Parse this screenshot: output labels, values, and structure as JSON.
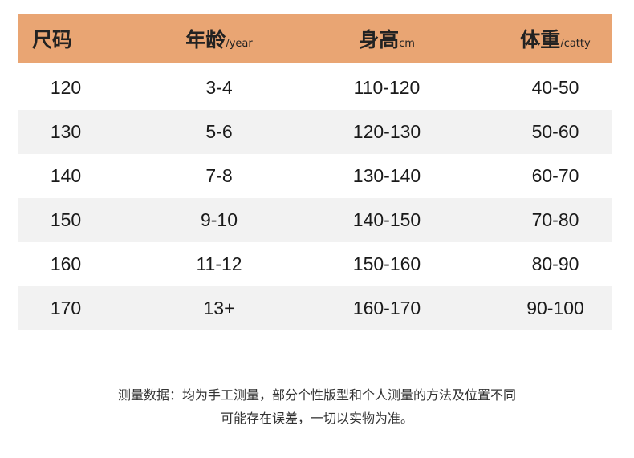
{
  "header": [
    {
      "label": "尺码",
      "unit": ""
    },
    {
      "label": "年龄",
      "unit": "/year"
    },
    {
      "label": "身高",
      "unit": "cm"
    },
    {
      "label": "体重",
      "unit": "/catty"
    }
  ],
  "rows": [
    [
      "120",
      "3-4",
      "110-120",
      "40-50"
    ],
    [
      "130",
      "5-6",
      "120-130",
      "50-60"
    ],
    [
      "140",
      "7-8",
      "130-140",
      "60-70"
    ],
    [
      "150",
      "9-10",
      "140-150",
      "70-80"
    ],
    [
      "160",
      "11-12",
      "150-160",
      "80-90"
    ],
    [
      "170",
      "13+",
      "160-170",
      "90-100"
    ]
  ],
  "note": {
    "line1": "测量数据：均为手工测量，部分个性版型和个人测量的方法及位置不同",
    "line2": "可能存在误差，一切以实物为准。"
  },
  "colors": {
    "header_bg": "#e9a573",
    "alt_row_bg": "#f2f2f2"
  }
}
